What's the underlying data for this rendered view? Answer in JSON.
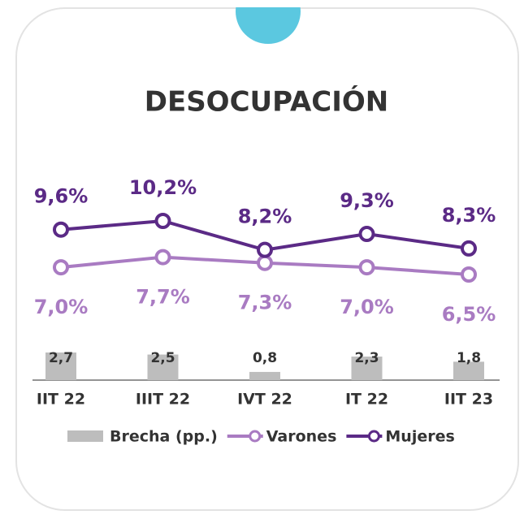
{
  "chart_data": {
    "type": "line",
    "title": "DESOCUPACIÓN",
    "categories": [
      "IIT 22",
      "IIIT 22",
      "IVT 22",
      "IT 22",
      "IIT 23"
    ],
    "series": [
      {
        "name": "Brecha (pp.)",
        "type": "bar",
        "color": "#bdbdbd",
        "values": [
          2.7,
          2.5,
          0.8,
          2.3,
          1.8
        ],
        "value_labels": [
          "2,7",
          "2,5",
          "0,8",
          "2,3",
          "1,8"
        ]
      },
      {
        "name": "Varones",
        "type": "line",
        "color": "#a97bc2",
        "values": [
          7.0,
          7.7,
          7.3,
          7.0,
          6.5
        ],
        "value_labels": [
          "7,0%",
          "7,7%",
          "7,3%",
          "7,0%",
          "6,5%"
        ]
      },
      {
        "name": "Mujeres",
        "type": "line",
        "color": "#5b2a86",
        "values": [
          9.6,
          10.2,
          8.2,
          9.3,
          8.3
        ],
        "value_labels": [
          "9,6%",
          "10,2%",
          "8,2%",
          "9,3%",
          "8,3%"
        ]
      }
    ]
  }
}
